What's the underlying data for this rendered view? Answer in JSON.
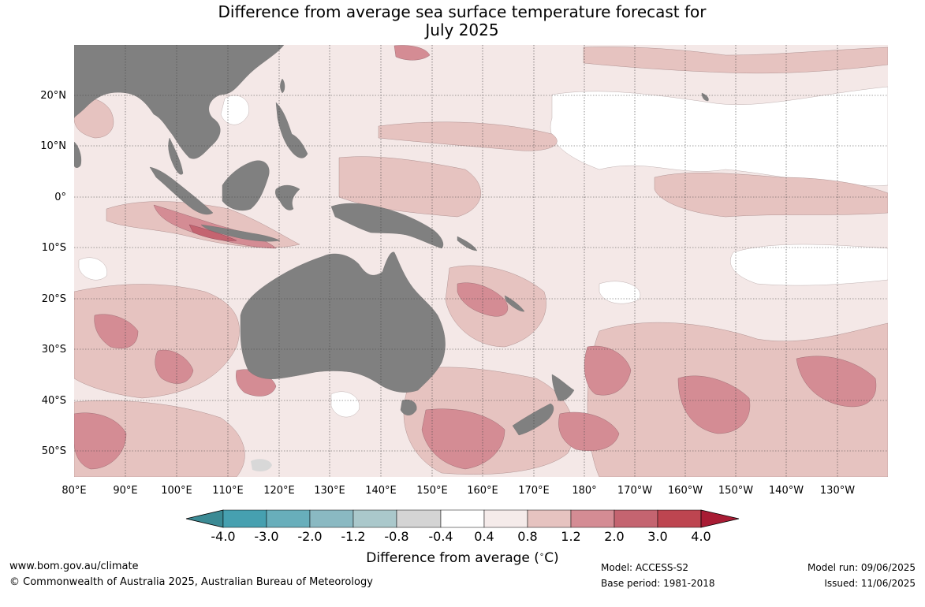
{
  "title": {
    "line1": "Difference from average sea surface temperature forecast for",
    "line2": "July 2025"
  },
  "map": {
    "lat_labels": [
      "20°N",
      "10°N",
      "0°",
      "10°S",
      "20°S",
      "30°S",
      "40°S",
      "50°S"
    ],
    "lon_labels": [
      "80°E",
      "90°E",
      "100°E",
      "110°E",
      "120°E",
      "130°E",
      "140°E",
      "150°E",
      "160°E",
      "170°E",
      "180°",
      "170°W",
      "160°W",
      "150°W",
      "140°W",
      "130°W"
    ],
    "colors": {
      "land": "#808080",
      "ocean_neutral": "#ffffff",
      "anom_0_4": "#f4e8e7",
      "anom_0_8": "#e6c3c0",
      "anom_1_2": "#d48c94",
      "anom_2_0": "#c46470",
      "anom_cool": "#d8d8d8",
      "grid": "#444444"
    }
  },
  "colorbar": {
    "labels": [
      "-4.0",
      "-3.0",
      "-2.0",
      "-1.2",
      "-0.8",
      "-0.4",
      "0.4",
      "0.8",
      "1.2",
      "2.0",
      "3.0",
      "4.0"
    ],
    "colors": [
      "#3b8a94",
      "#46a0b0",
      "#68aebb",
      "#8ab9c2",
      "#aac8cb",
      "#d4d4d4",
      "#ffffff",
      "#f5ebea",
      "#e6c3c0",
      "#d48c94",
      "#c46470",
      "#bd4550",
      "#a81c34"
    ],
    "title": "Difference from average (",
    "title_unit": "C)",
    "title_degree": "∘"
  },
  "footer": {
    "website": "www.bom.gov.au/climate",
    "copyright": "© Commonwealth of Australia 2025, Australian Bureau of Meteorology",
    "model": "Model: ACCESS-S2",
    "base_period": "Base period: 1981-2018",
    "model_run": "Model run: 09/06/2025",
    "issued": "Issued: 11/06/2025"
  }
}
